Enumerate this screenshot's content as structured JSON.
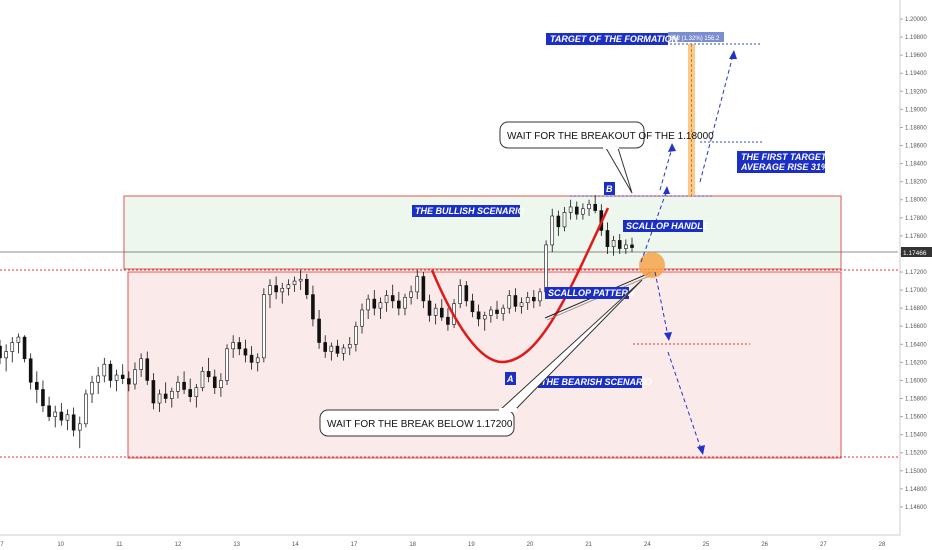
{
  "chart_data": {
    "type": "candlestick",
    "symbol_price_label": "1.17466",
    "current_price": 1.17466,
    "ylim": [
      1.144,
      1.201
    ],
    "y_ticks": [
      "1.20000",
      "1.19800",
      "1.19600",
      "1.19400",
      "1.19200",
      "1.19000",
      "1.18800",
      "1.18600",
      "1.18400",
      "1.18200",
      "1.18000",
      "1.17800",
      "1.17600",
      "1.17400",
      "1.17200",
      "1.17000",
      "1.16800",
      "1.16600",
      "1.16400",
      "1.16200",
      "1.16000",
      "1.15800",
      "1.15600",
      "1.15400",
      "1.15200",
      "1.15000",
      "1.14800",
      "1.14600"
    ],
    "x_ticks": [
      "7",
      "10",
      "11",
      "12",
      "13",
      "14",
      "17",
      "18",
      "19",
      "20",
      "21",
      "24",
      "25",
      "26",
      "27",
      "28"
    ],
    "measure_label": "362 (1.32%) 156.2",
    "annotations": {
      "target_formation": "TARGET OF THE FORMATION",
      "wait_breakout": "WAIT FOR THE BREAKOUT OF THE 1.18000",
      "first_target_line1": "THE FIRST TARGET",
      "first_target_line2": "AVERAGE RISE 31%",
      "bullish": "THE BULLISH SCENARIO",
      "scallop_handle": "SCALLOP HANDLE",
      "scallop_pattern": "SCALLOP PATTERN",
      "bearish": "THE BEARISH SCENARIO",
      "wait_break_below": "WAIT FOR THE BREAK BELOW 1.17200",
      "point_a": "A",
      "point_b": "B"
    },
    "levels": {
      "zone_top": 1.1806,
      "support": 1.1725,
      "zone_bottom": 1.153,
      "bear_target": 1.165,
      "first_target": 1.1865,
      "formation_target": 1.197
    },
    "series": [
      {
        "values": [
          [
            0,
            1.1638,
            1.1645,
            1.1618,
            1.1625
          ],
          [
            1,
            1.1625,
            1.164,
            1.161,
            1.1632
          ],
          [
            2,
            1.1632,
            1.1648,
            1.162,
            1.1642
          ],
          [
            3,
            1.1642,
            1.1652,
            1.163,
            1.1648
          ],
          [
            4,
            1.1648,
            1.165,
            1.162,
            1.1624
          ],
          [
            5,
            1.1624,
            1.163,
            1.159,
            1.1598
          ],
          [
            6,
            1.1598,
            1.161,
            1.1575,
            1.159
          ],
          [
            7,
            1.159,
            1.16,
            1.1565,
            1.1572
          ],
          [
            8,
            1.1572,
            1.1582,
            1.1555,
            1.156
          ],
          [
            9,
            1.156,
            1.1572,
            1.1548,
            1.1565
          ],
          [
            10,
            1.1565,
            1.1575,
            1.155,
            1.1556
          ],
          [
            11,
            1.1556,
            1.1568,
            1.1545,
            1.1562
          ],
          [
            12,
            1.1562,
            1.157,
            1.1538,
            1.1545
          ],
          [
            13,
            1.1545,
            1.156,
            1.1525,
            1.1552
          ],
          [
            14,
            1.1552,
            1.159,
            1.1548,
            1.1585
          ],
          [
            15,
            1.1585,
            1.1605,
            1.1575,
            1.1598
          ],
          [
            16,
            1.1598,
            1.1615,
            1.1585,
            1.1605
          ],
          [
            17,
            1.1605,
            1.1625,
            1.1598,
            1.1618
          ],
          [
            18,
            1.1618,
            1.1622,
            1.1592,
            1.16
          ],
          [
            19,
            1.16,
            1.1612,
            1.1588,
            1.1606
          ],
          [
            20,
            1.1606,
            1.1618,
            1.1596,
            1.1602
          ],
          [
            21,
            1.1602,
            1.161,
            1.1588,
            1.1596
          ],
          [
            22,
            1.1596,
            1.162,
            1.159,
            1.1612
          ],
          [
            23,
            1.1612,
            1.163,
            1.1604,
            1.1624
          ],
          [
            24,
            1.1624,
            1.1632,
            1.1595,
            1.16
          ],
          [
            25,
            1.16,
            1.1608,
            1.1568,
            1.1575
          ],
          [
            26,
            1.1575,
            1.159,
            1.1565,
            1.1585
          ],
          [
            27,
            1.1585,
            1.1598,
            1.1575,
            1.158
          ],
          [
            28,
            1.158,
            1.1592,
            1.157,
            1.1588
          ],
          [
            29,
            1.1588,
            1.1605,
            1.158,
            1.1598
          ],
          [
            30,
            1.1598,
            1.161,
            1.1585,
            1.159
          ],
          [
            31,
            1.159,
            1.1602,
            1.1576,
            1.1582
          ],
          [
            32,
            1.1582,
            1.1596,
            1.157,
            1.1592
          ],
          [
            33,
            1.1592,
            1.1615,
            1.1588,
            1.161
          ],
          [
            34,
            1.161,
            1.1625,
            1.1598,
            1.1604
          ],
          [
            35,
            1.1604,
            1.1612,
            1.1585,
            1.1592
          ],
          [
            36,
            1.1592,
            1.1608,
            1.1582,
            1.16
          ],
          [
            37,
            1.16,
            1.164,
            1.1595,
            1.1635
          ],
          [
            38,
            1.1635,
            1.165,
            1.1625,
            1.1642
          ],
          [
            39,
            1.1642,
            1.1648,
            1.1628,
            1.1635
          ],
          [
            40,
            1.1635,
            1.1645,
            1.162,
            1.1628
          ],
          [
            41,
            1.1628,
            1.1638,
            1.1612,
            1.162
          ],
          [
            42,
            1.162,
            1.163,
            1.161,
            1.1625
          ],
          [
            43,
            1.1625,
            1.1702,
            1.162,
            1.1695
          ],
          [
            44,
            1.1695,
            1.1712,
            1.168,
            1.1705
          ],
          [
            45,
            1.1705,
            1.1715,
            1.169,
            1.1698
          ],
          [
            46,
            1.1698,
            1.1708,
            1.1685,
            1.1702
          ],
          [
            47,
            1.1702,
            1.1712,
            1.1694,
            1.1706
          ],
          [
            48,
            1.1706,
            1.1715,
            1.1698,
            1.171
          ],
          [
            49,
            1.171,
            1.1722,
            1.17,
            1.1712
          ],
          [
            50,
            1.1712,
            1.1718,
            1.169,
            1.1695
          ],
          [
            51,
            1.1695,
            1.1705,
            1.166,
            1.1668
          ],
          [
            52,
            1.1668,
            1.1678,
            1.1635,
            1.1642
          ],
          [
            53,
            1.1642,
            1.165,
            1.1625,
            1.1632
          ],
          [
            54,
            1.1632,
            1.1642,
            1.1622,
            1.1638
          ],
          [
            55,
            1.1638,
            1.1645,
            1.1626,
            1.163
          ],
          [
            56,
            1.163,
            1.164,
            1.1622,
            1.1636
          ],
          [
            57,
            1.1636,
            1.1648,
            1.1628,
            1.164
          ],
          [
            58,
            1.164,
            1.1665,
            1.1632,
            1.166
          ],
          [
            59,
            1.166,
            1.1685,
            1.1652,
            1.1678
          ],
          [
            60,
            1.1678,
            1.1695,
            1.1668,
            1.169
          ],
          [
            61,
            1.169,
            1.17,
            1.1672,
            1.168
          ],
          [
            62,
            1.168,
            1.1692,
            1.1668,
            1.1686
          ],
          [
            63,
            1.1686,
            1.17,
            1.1676,
            1.1694
          ],
          [
            64,
            1.1694,
            1.1706,
            1.168,
            1.1688
          ],
          [
            65,
            1.1688,
            1.1698,
            1.1672,
            1.168
          ],
          [
            66,
            1.168,
            1.1696,
            1.1672,
            1.1692
          ],
          [
            67,
            1.1692,
            1.1705,
            1.1684,
            1.1698
          ],
          [
            68,
            1.1698,
            1.1722,
            1.169,
            1.1715
          ],
          [
            69,
            1.1715,
            1.172,
            1.168,
            1.1688
          ],
          [
            70,
            1.1688,
            1.1695,
            1.1665,
            1.1672
          ],
          [
            71,
            1.1672,
            1.1685,
            1.1662,
            1.168
          ],
          [
            72,
            1.168,
            1.169,
            1.1666,
            1.167
          ],
          [
            73,
            1.167,
            1.168,
            1.1655,
            1.1662
          ],
          [
            74,
            1.1662,
            1.169,
            1.1658,
            1.1685
          ],
          [
            75,
            1.1685,
            1.1712,
            1.168,
            1.1705
          ],
          [
            76,
            1.1705,
            1.171,
            1.1682,
            1.1688
          ],
          [
            77,
            1.1688,
            1.1696,
            1.167,
            1.1676
          ],
          [
            78,
            1.1676,
            1.1684,
            1.166,
            1.1668
          ],
          [
            79,
            1.1668,
            1.1676,
            1.1655,
            1.1672
          ],
          [
            80,
            1.1672,
            1.1682,
            1.1664,
            1.1678
          ],
          [
            81,
            1.1678,
            1.1688,
            1.1668,
            1.1674
          ],
          [
            82,
            1.1674,
            1.1684,
            1.1666,
            1.168
          ],
          [
            83,
            1.168,
            1.17,
            1.1674,
            1.1694
          ],
          [
            84,
            1.1694,
            1.1702,
            1.1676,
            1.1682
          ],
          [
            85,
            1.1682,
            1.1692,
            1.1674,
            1.1686
          ],
          [
            86,
            1.1686,
            1.1698,
            1.1678,
            1.1692
          ],
          [
            87,
            1.1692,
            1.17,
            1.168,
            1.1688
          ],
          [
            88,
            1.1688,
            1.1702,
            1.1682,
            1.1698
          ],
          [
            89,
            1.1698,
            1.1755,
            1.1694,
            1.175
          ],
          [
            90,
            1.175,
            1.179,
            1.1742,
            1.1782
          ],
          [
            91,
            1.1782,
            1.1788,
            1.176,
            1.177
          ],
          [
            92,
            1.177,
            1.1792,
            1.1765,
            1.1786
          ],
          [
            93,
            1.1786,
            1.18,
            1.1778,
            1.1792
          ],
          [
            94,
            1.1792,
            1.1798,
            1.1778,
            1.1784
          ],
          [
            95,
            1.1784,
            1.1796,
            1.1778,
            1.179
          ],
          [
            96,
            1.179,
            1.18,
            1.1782,
            1.1795
          ],
          [
            97,
            1.1795,
            1.1805,
            1.1785,
            1.1788
          ],
          [
            98,
            1.1788,
            1.1795,
            1.176,
            1.1766
          ],
          [
            99,
            1.1766,
            1.1775,
            1.174,
            1.1748
          ],
          [
            100,
            1.1748,
            1.176,
            1.1738,
            1.1755
          ],
          [
            101,
            1.1755,
            1.1762,
            1.174,
            1.1746
          ],
          [
            102,
            1.1746,
            1.1756,
            1.174,
            1.175
          ],
          [
            103,
            1.175,
            1.1758,
            1.1742,
            1.1747
          ]
        ]
      }
    ]
  }
}
